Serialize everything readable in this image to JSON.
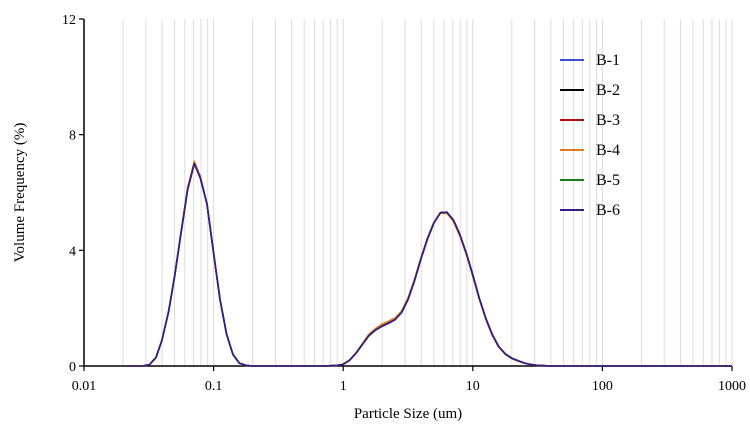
{
  "chart_data": {
    "type": "line",
    "xlabel": "Particle Size (um)",
    "ylabel": "Volume Frequency (%)",
    "x_scale": "log",
    "xlim": [
      0.01,
      1000
    ],
    "ylim": [
      0,
      12
    ],
    "x_ticks": [
      0.01,
      0.1,
      1,
      10,
      100,
      1000
    ],
    "x_tick_labels": [
      "0.01",
      "0.1",
      "1",
      "10",
      "100",
      "1000"
    ],
    "y_ticks": [
      0,
      4,
      8,
      12
    ],
    "y_tick_labels": [
      "0",
      "4",
      "8",
      "12"
    ],
    "grid": "vertical minor and major lines",
    "legend_position": "top-right",
    "x": [
      0.022,
      0.028,
      0.032,
      0.036,
      0.04,
      0.045,
      0.05,
      0.056,
      0.063,
      0.071,
      0.079,
      0.089,
      0.1,
      0.112,
      0.126,
      0.141,
      0.158,
      0.178,
      0.2,
      0.3,
      0.5,
      0.7,
      0.9,
      1.0,
      1.12,
      1.26,
      1.41,
      1.58,
      1.78,
      2.0,
      2.24,
      2.51,
      2.82,
      3.16,
      3.55,
      3.98,
      4.47,
      5.01,
      5.62,
      6.31,
      7.08,
      7.94,
      8.91,
      10.0,
      11.2,
      12.6,
      14.1,
      15.8,
      17.8,
      20.0,
      22.4,
      25.1,
      28.2,
      31.6,
      35.5,
      40,
      60,
      100,
      300,
      1000
    ],
    "series": [
      {
        "name": "B-1",
        "color": "#3a4fd8",
        "y": [
          0,
          0,
          0.05,
          0.3,
          0.9,
          1.9,
          3.1,
          4.6,
          6.1,
          7.0,
          6.5,
          5.6,
          3.9,
          2.3,
          1.1,
          0.4,
          0.1,
          0.02,
          0,
          0,
          0,
          0,
          0.02,
          0.06,
          0.2,
          0.45,
          0.75,
          1.05,
          1.25,
          1.38,
          1.48,
          1.6,
          1.85,
          2.3,
          2.95,
          3.7,
          4.4,
          4.95,
          5.3,
          5.32,
          5.05,
          4.55,
          3.9,
          3.15,
          2.35,
          1.65,
          1.1,
          0.68,
          0.42,
          0.27,
          0.18,
          0.1,
          0.05,
          0.02,
          0.01,
          0,
          0,
          0,
          0,
          0
        ]
      },
      {
        "name": "B-2",
        "color": "#000000",
        "y": [
          0,
          0,
          0.05,
          0.3,
          0.9,
          1.9,
          3.1,
          4.6,
          6.1,
          7.0,
          6.5,
          5.6,
          3.9,
          2.3,
          1.1,
          0.4,
          0.1,
          0.02,
          0,
          0,
          0,
          0,
          0.02,
          0.06,
          0.2,
          0.45,
          0.75,
          1.05,
          1.25,
          1.38,
          1.48,
          1.6,
          1.85,
          2.3,
          2.95,
          3.7,
          4.4,
          4.95,
          5.3,
          5.32,
          5.05,
          4.55,
          3.9,
          3.15,
          2.35,
          1.65,
          1.1,
          0.68,
          0.42,
          0.27,
          0.18,
          0.1,
          0.05,
          0.02,
          0.01,
          0,
          0,
          0,
          0,
          0
        ]
      },
      {
        "name": "B-3",
        "color": "#b01010",
        "y": [
          0,
          0,
          0.05,
          0.3,
          0.9,
          1.9,
          3.1,
          4.6,
          6.15,
          7.05,
          6.55,
          5.6,
          3.9,
          2.3,
          1.1,
          0.4,
          0.1,
          0.02,
          0,
          0,
          0,
          0,
          0.02,
          0.06,
          0.2,
          0.46,
          0.77,
          1.08,
          1.28,
          1.42,
          1.52,
          1.64,
          1.88,
          2.33,
          2.98,
          3.72,
          4.42,
          4.96,
          5.3,
          5.3,
          5.02,
          4.52,
          3.88,
          3.12,
          2.33,
          1.63,
          1.08,
          0.67,
          0.41,
          0.26,
          0.17,
          0.1,
          0.05,
          0.02,
          0.01,
          0,
          0,
          0,
          0,
          0
        ]
      },
      {
        "name": "B-4",
        "color": "#e07b1a",
        "y": [
          0,
          0,
          0.05,
          0.3,
          0.9,
          1.9,
          3.1,
          4.6,
          6.12,
          7.08,
          6.52,
          5.6,
          3.9,
          2.3,
          1.1,
          0.4,
          0.1,
          0.02,
          0,
          0,
          0,
          0,
          0.02,
          0.06,
          0.2,
          0.47,
          0.78,
          1.1,
          1.3,
          1.45,
          1.55,
          1.66,
          1.9,
          2.35,
          3.0,
          3.74,
          4.43,
          4.97,
          5.28,
          5.28,
          5.0,
          4.5,
          3.86,
          3.1,
          2.32,
          1.62,
          1.07,
          0.66,
          0.4,
          0.26,
          0.17,
          0.1,
          0.05,
          0.02,
          0.01,
          0,
          0,
          0,
          0,
          0
        ]
      },
      {
        "name": "B-5",
        "color": "#1a7a1a",
        "y": [
          0,
          0,
          0.05,
          0.3,
          0.9,
          1.9,
          3.1,
          4.6,
          6.1,
          7.0,
          6.5,
          5.6,
          3.9,
          2.3,
          1.1,
          0.4,
          0.1,
          0.02,
          0,
          0,
          0,
          0,
          0.02,
          0.06,
          0.2,
          0.45,
          0.75,
          1.05,
          1.25,
          1.38,
          1.48,
          1.6,
          1.85,
          2.3,
          2.95,
          3.7,
          4.4,
          4.95,
          5.3,
          5.32,
          5.05,
          4.55,
          3.9,
          3.15,
          2.35,
          1.65,
          1.1,
          0.68,
          0.42,
          0.27,
          0.18,
          0.1,
          0.05,
          0.02,
          0.01,
          0,
          0,
          0,
          0,
          0
        ]
      },
      {
        "name": "B-6",
        "color": "#3a1a8a",
        "y": [
          0,
          0,
          0.05,
          0.3,
          0.9,
          1.9,
          3.1,
          4.6,
          6.1,
          7.0,
          6.5,
          5.6,
          3.9,
          2.3,
          1.1,
          0.4,
          0.1,
          0.02,
          0,
          0,
          0,
          0,
          0.02,
          0.06,
          0.2,
          0.45,
          0.75,
          1.05,
          1.25,
          1.38,
          1.48,
          1.6,
          1.85,
          2.3,
          2.95,
          3.7,
          4.4,
          4.95,
          5.3,
          5.32,
          5.05,
          4.55,
          3.9,
          3.15,
          2.35,
          1.65,
          1.1,
          0.68,
          0.42,
          0.27,
          0.18,
          0.1,
          0.05,
          0.02,
          0.01,
          0,
          0,
          0,
          0,
          0
        ]
      }
    ]
  }
}
